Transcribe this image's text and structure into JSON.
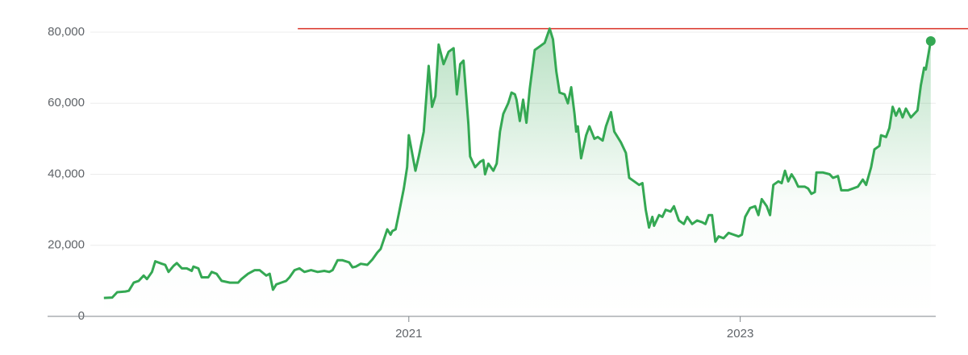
{
  "chart_data": {
    "type": "line",
    "x": [
      2019.16,
      2019.21,
      2019.24,
      2019.29,
      2019.31,
      2019.34,
      2019.37,
      2019.4,
      2019.42,
      2019.45,
      2019.47,
      2019.51,
      2019.53,
      2019.55,
      2019.58,
      2019.6,
      2019.63,
      2019.66,
      2019.69,
      2019.7,
      2019.73,
      2019.75,
      2019.79,
      2019.81,
      2019.84,
      2019.87,
      2019.92,
      2019.97,
      2019.99,
      2020.03,
      2020.07,
      2020.1,
      2020.14,
      2020.16,
      2020.18,
      2020.2,
      2020.23,
      2020.26,
      2020.28,
      2020.31,
      2020.34,
      2020.37,
      2020.41,
      2020.45,
      2020.49,
      2020.52,
      2020.54,
      2020.57,
      2020.6,
      2020.64,
      2020.66,
      2020.68,
      2020.71,
      2020.75,
      2020.78,
      2020.81,
      2020.83,
      2020.87,
      2020.89,
      2020.9,
      2020.92,
      2020.94,
      2020.97,
      2020.99,
      2021.0,
      2021.04,
      2021.06,
      2021.09,
      2021.12,
      2021.14,
      2021.16,
      2021.18,
      2021.21,
      2021.24,
      2021.27,
      2021.29,
      2021.31,
      2021.33,
      2021.36,
      2021.37,
      2021.4,
      2021.43,
      2021.45,
      2021.46,
      2021.48,
      2021.51,
      2021.53,
      2021.55,
      2021.57,
      2021.6,
      2021.62,
      2021.64,
      2021.65,
      2021.67,
      2021.69,
      2021.71,
      2021.73,
      2021.76,
      2021.79,
      2021.82,
      2021.85,
      2021.87,
      2021.89,
      2021.91,
      2021.94,
      2021.96,
      2021.98,
      2022.0,
      2022.01,
      2022.02,
      2022.04,
      2022.07,
      2022.09,
      2022.12,
      2022.14,
      2022.17,
      2022.19,
      2022.22,
      2022.24,
      2022.28,
      2022.31,
      2022.33,
      2022.36,
      2022.39,
      2022.41,
      2022.43,
      2022.45,
      2022.47,
      2022.48,
      2022.51,
      2022.53,
      2022.55,
      2022.58,
      2022.6,
      2022.63,
      2022.66,
      2022.68,
      2022.71,
      2022.74,
      2022.77,
      2022.79,
      2022.81,
      2022.83,
      2022.85,
      2022.87,
      2022.9,
      2022.93,
      2022.96,
      2022.99,
      2023.01,
      2023.03,
      2023.06,
      2023.09,
      2023.11,
      2023.13,
      2023.16,
      2023.18,
      2023.2,
      2023.23,
      2023.25,
      2023.27,
      2023.29,
      2023.31,
      2023.33,
      2023.35,
      2023.39,
      2023.41,
      2023.43,
      2023.45,
      2023.46,
      2023.5,
      2023.54,
      2023.56,
      2023.59,
      2023.61,
      2023.65,
      2023.68,
      2023.71,
      2023.74,
      2023.76,
      2023.79,
      2023.81,
      2023.84,
      2023.85,
      2023.88,
      2023.9,
      2023.92,
      2023.94,
      2023.96,
      2023.98,
      2024.0,
      2024.03,
      2024.07,
      2024.09,
      2024.11,
      2024.12,
      2024.15
    ],
    "series": [
      {
        "color": "#34a853",
        "values": [
          5200,
          5300,
          6800,
          7000,
          7200,
          9500,
          10000,
          11500,
          10500,
          12500,
          15500,
          14800,
          14500,
          12500,
          14200,
          15000,
          13500,
          13500,
          12800,
          14000,
          13500,
          11000,
          11000,
          12500,
          12000,
          10000,
          9500,
          9500,
          10500,
          12000,
          13000,
          13000,
          11500,
          12000,
          7500,
          9000,
          9500,
          10000,
          11000,
          13000,
          13500,
          12500,
          13000,
          12500,
          12800,
          12500,
          13000,
          15800,
          15800,
          15200,
          13800,
          14000,
          14800,
          14500,
          16000,
          18000,
          19000,
          24500,
          23000,
          24000,
          24500,
          29000,
          36000,
          42000,
          51000,
          41000,
          45000,
          52000,
          70500,
          59000,
          62000,
          76500,
          71000,
          74500,
          75500,
          62500,
          71000,
          72000,
          54000,
          45000,
          42000,
          43500,
          44000,
          40000,
          43000,
          41000,
          43000,
          52000,
          57000,
          60000,
          63000,
          62500,
          61000,
          55000,
          61000,
          54500,
          64000,
          75000,
          76000,
          77000,
          81000,
          78000,
          69000,
          63000,
          62500,
          60000,
          64500,
          57000,
          52000,
          53500,
          44500,
          51000,
          53500,
          50000,
          50500,
          49500,
          53500,
          57500,
          52000,
          49000,
          46000,
          39000,
          38000,
          37000,
          37500,
          30000,
          25000,
          28000,
          25500,
          28500,
          28000,
          30000,
          29500,
          31000,
          27000,
          26000,
          28000,
          26000,
          27000,
          26500,
          26000,
          28500,
          28500,
          21000,
          22500,
          22000,
          23500,
          23000,
          22500,
          23000,
          28000,
          30500,
          31000,
          28500,
          33000,
          31000,
          28500,
          37000,
          38000,
          37500,
          41000,
          38000,
          40000,
          38500,
          36500,
          36500,
          36000,
          34500,
          35000,
          40500,
          40500,
          40000,
          39000,
          39500,
          35500,
          35500,
          36000,
          36500,
          38500,
          37000,
          42000,
          47000,
          48000,
          51000,
          50500,
          53000,
          59000,
          56500,
          58500,
          56000,
          58500,
          56000,
          58000,
          65000,
          70000,
          69500,
          77500
        ]
      }
    ],
    "reference_line": {
      "value": 81000,
      "from": 2020.33,
      "color": "#d93025"
    },
    "xlim": [
      2018.82,
      2024.18
    ],
    "xticks": [
      2021,
      2023
    ],
    "ylim": [
      0,
      80000
    ],
    "yticks": [
      0,
      {
        "value": 20000,
        "label": "20,000"
      },
      {
        "value": 40000,
        "label": "40,000"
      },
      {
        "value": 60000,
        "label": "60,000"
      },
      {
        "value": 80000,
        "label": "80,000"
      }
    ],
    "grid": true
  }
}
